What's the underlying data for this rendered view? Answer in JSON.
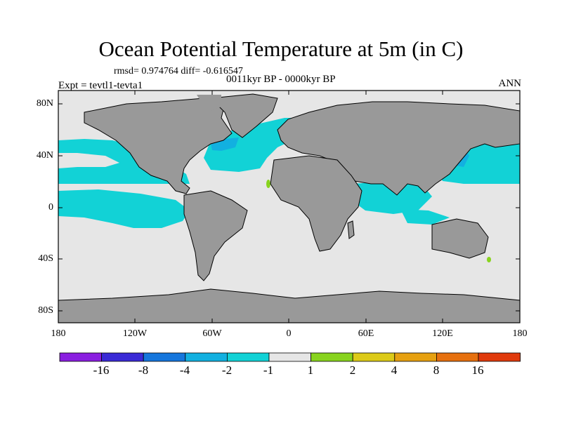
{
  "figure": {
    "title": "Ocean Potential Temperature at 5m (in C)",
    "stats": "rmsd= 0.974764 diff= -0.616547",
    "period": "0011kyr BP - 0000kyr BP",
    "experiment": "Expt = tevtl1-tevta1",
    "season": "ANN"
  },
  "axes": {
    "lat_ticks": [
      "80N",
      "40N",
      "0",
      "40S",
      "80S"
    ],
    "lon_ticks": [
      "180",
      "120W",
      "60W",
      "0",
      "60E",
      "120E",
      "180"
    ]
  },
  "colorbar": {
    "boundaries": [
      "-16",
      "-8",
      "-4",
      "-2",
      "-1",
      "1",
      "2",
      "4",
      "8",
      "16"
    ],
    "colors": [
      "#8a1ee0",
      "#3a2ad6",
      "#1576dc",
      "#12b0e0",
      "#12d2d6",
      "#e6e6e6",
      "#88d31e",
      "#dcca18",
      "#e6a010",
      "#e6700e",
      "#e03a0c"
    ]
  },
  "colors": {
    "land": "#999999",
    "ocean_neutral": "#e6e6e6",
    "anomaly_cool": "#12d2d6",
    "anomaly_cooler": "#12b0e0",
    "anomaly_coolest": "#1576dc",
    "anomaly_warm": "#88d31e"
  }
}
